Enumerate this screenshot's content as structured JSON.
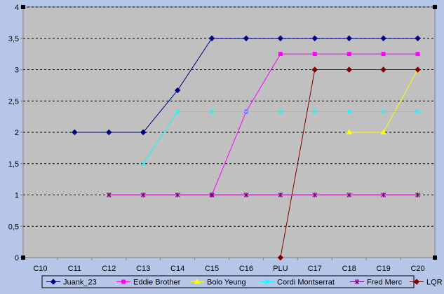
{
  "colors": {
    "chart_background": "#b5c6e9",
    "plot_background": "#c0c0c0",
    "gridline": "#000000",
    "axis": "#808080"
  },
  "chart_data": {
    "type": "line",
    "title": "",
    "xlabel": "",
    "ylabel": "",
    "categories": [
      "C10",
      "C11",
      "C12",
      "C13",
      "C14",
      "C15",
      "C16",
      "PLU",
      "C17",
      "C18",
      "C19",
      "C20"
    ],
    "ylim": [
      0,
      4
    ],
    "yticks": [
      0,
      0.5,
      1,
      1.5,
      2,
      2.5,
      3,
      3.5,
      4
    ],
    "ytick_labels": [
      "0",
      "0,5",
      "1",
      "1,5",
      "2",
      "2,5",
      "3",
      "3,5",
      "4"
    ],
    "grid": true,
    "legend_position": "bottom",
    "series": [
      {
        "name": "Juank_23",
        "color": "#000080",
        "marker": "diamond",
        "values": [
          null,
          2,
          2,
          2,
          2.67,
          3.5,
          3.5,
          3.5,
          3.5,
          3.5,
          3.5,
          3.5
        ]
      },
      {
        "name": "Eddie Brother",
        "color": "#ff00ff",
        "marker": "square",
        "values": [
          null,
          null,
          null,
          null,
          null,
          1,
          2.33,
          3.25,
          3.25,
          3.25,
          3.25,
          3.25
        ]
      },
      {
        "name": "Bolo Yeung",
        "color": "#ffff00",
        "marker": "triangle",
        "values": [
          null,
          null,
          null,
          null,
          null,
          null,
          null,
          null,
          null,
          2,
          2,
          3
        ]
      },
      {
        "name": "Cordi Montserrat",
        "color": "#00ffff",
        "marker": "x",
        "values": [
          null,
          null,
          null,
          1.5,
          2.33,
          2.33,
          2.33,
          2.33,
          2.33,
          2.33,
          2.33,
          2.33
        ]
      },
      {
        "name": "Fred Merc",
        "color": "#800080",
        "marker": "star",
        "values": [
          null,
          null,
          1,
          1,
          1,
          1,
          1,
          1,
          1,
          1,
          1,
          1
        ]
      },
      {
        "name": "LQR",
        "color": "#800000",
        "marker": "diamond",
        "values": [
          null,
          null,
          null,
          null,
          null,
          null,
          null,
          0,
          3,
          3,
          3,
          3
        ]
      }
    ]
  }
}
